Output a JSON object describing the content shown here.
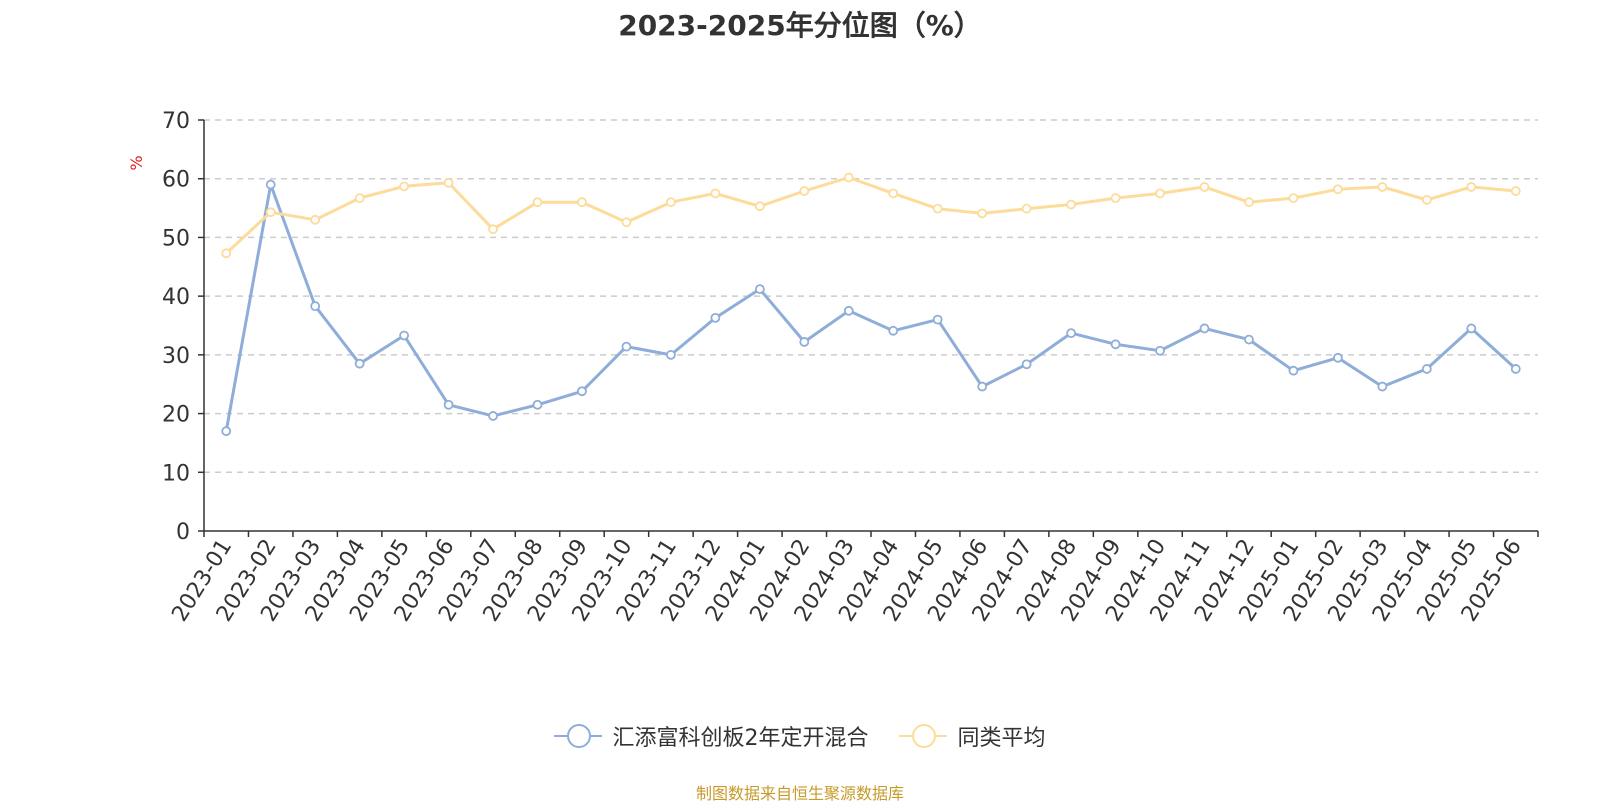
{
  "chart_data": {
    "type": "line",
    "title": "2023-2025年分位图（%）",
    "ylabel": "%",
    "ylim": [
      0,
      70
    ],
    "yticks": [
      0,
      10,
      20,
      30,
      40,
      50,
      60,
      70
    ],
    "grid": true,
    "legend_position": "bottom",
    "categories": [
      "2023-01",
      "2023-02",
      "2023-03",
      "2023-04",
      "2023-05",
      "2023-06",
      "2023-07",
      "2023-08",
      "2023-09",
      "2023-10",
      "2023-11",
      "2023-12",
      "2024-01",
      "2024-02",
      "2024-03",
      "2024-04",
      "2024-05",
      "2024-06",
      "2024-07",
      "2024-08",
      "2024-09",
      "2024-10",
      "2024-11",
      "2024-12",
      "2025-01",
      "2025-02",
      "2025-03",
      "2025-04",
      "2025-05",
      "2025-06"
    ],
    "series": [
      {
        "name": "汇添富科创板2年定开混合",
        "color": "#8eadd9",
        "values": [
          17,
          59,
          38.3,
          28.5,
          33.3,
          21.5,
          19.6,
          21.5,
          23.8,
          31.4,
          30,
          36.3,
          41.2,
          32.2,
          37.5,
          34.1,
          36,
          24.6,
          28.4,
          33.7,
          31.8,
          30.7,
          34.5,
          32.6,
          27.3,
          29.5,
          24.6,
          27.6,
          34.5,
          27.6
        ]
      },
      {
        "name": "同类平均",
        "color": "#fddb9a",
        "values": [
          47.3,
          54.3,
          53,
          56.7,
          58.7,
          59.3,
          51.4,
          56,
          56,
          52.6,
          56,
          57.5,
          55.3,
          57.9,
          60.2,
          57.5,
          54.9,
          54.1,
          54.9,
          55.6,
          56.7,
          57.5,
          58.6,
          56,
          56.7,
          58.2,
          58.6,
          56.4,
          58.6,
          57.9
        ]
      }
    ]
  },
  "source_text": "制图数据来自恒生聚源数据库",
  "source_color": "#c79a2a",
  "axis_label_color": "#e02020"
}
